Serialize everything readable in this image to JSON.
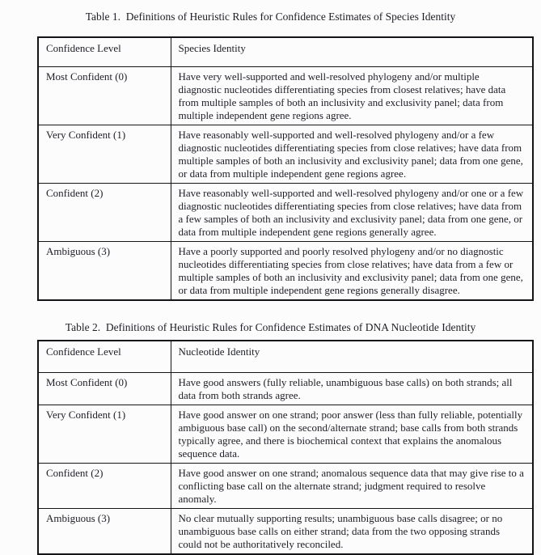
{
  "tables": [
    {
      "title": "Table 1.  Definitions of Heuristic Rules for Confidence Estimates of Species Identity",
      "columns": [
        "Confidence Level",
        "Species Identity"
      ],
      "rows": [
        {
          "level": "Most Confident (0)",
          "definition": "Have very well-supported and well-resolved phylogeny and/or multiple diagnostic nucleotides differentiating species from closest relatives; have data from multiple samples of both an inclusivity and exclusivity panel; data from multiple independent gene regions agree."
        },
        {
          "level": "Very Confident (1)",
          "definition": "Have reasonably well-supported and well-resolved phylogeny and/or a few diagnostic nucleotides differentiating species from close relatives; have data from multiple samples of both an inclusivity and exclusivity panel; data from one gene, or data from multiple independent gene regions agree."
        },
        {
          "level": "Confident (2)",
          "definition": "Have reasonably well-supported and well-resolved phylogeny and/or one or a few diagnostic nucleotides differentiating species from close relatives; have data from a few samples of both an inclusivity and exclusivity panel; data from one gene, or data from multiple independent gene regions generally agree."
        },
        {
          "level": "Ambiguous (3)",
          "definition": "Have a poorly supported and poorly resolved phylogeny and/or no diagnostic nucleotides differentiating species from close relatives; have data from a few or multiple samples of both an inclusivity and exclusivity panel; data from one gene, or data from multiple independent gene regions generally disagree."
        }
      ]
    },
    {
      "title": "Table 2.  Definitions of Heuristic Rules for Confidence Estimates of DNA Nucleotide Identity",
      "columns": [
        "Confidence Level",
        "Nucleotide Identity"
      ],
      "rows": [
        {
          "level": "Most Confident (0)",
          "definition": "Have good answers (fully reliable, unambiguous base calls) on both strands; all data from both strands agree."
        },
        {
          "level": "Very Confident (1)",
          "definition": "Have good answer on one strand; poor answer (less than fully reliable, potentially ambiguous base call) on the second/alternate strand; base calls from both strands typically agree, and there is biochemical context that explains the anomalous sequence data."
        },
        {
          "level": "Confident (2)",
          "definition": "Have good answer on one strand; anomalous sequence data that may give rise to a conflicting base call on the alternate strand; judgment required to resolve anomaly."
        },
        {
          "level": "Ambiguous (3)",
          "definition": "No clear mutually supporting results; unambiguous base calls disagree; or no unambiguous base calls on either strand; data from the two opposing strands could not be authoritatively reconciled."
        }
      ]
    }
  ]
}
